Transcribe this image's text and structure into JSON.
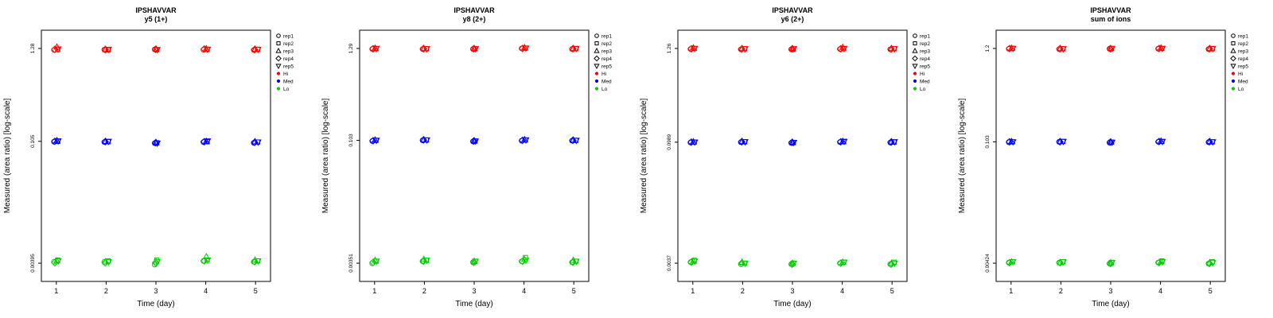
{
  "legend": {
    "rep_labels": [
      "rep1",
      "rep2",
      "rep3",
      "rep4",
      "rep5"
    ],
    "level_labels": [
      "Hi",
      "Med",
      "Lo"
    ]
  },
  "colors": {
    "axis": "#000000",
    "hi": "#ff0000",
    "med": "#0000ff",
    "lo": "#00cc00"
  },
  "chart_data": [
    {
      "type": "scatter",
      "title": "IPSHAVVAR",
      "subtitle": "y5 (1+)",
      "xlabel": "Time (day)",
      "ylabel": "Measured (area ratio) [log-scale]",
      "x_ticks": [
        "1",
        "2",
        "3",
        "4",
        "5"
      ],
      "log_scale": true,
      "groups": [
        {
          "name": "Hi",
          "color": "#ff0000",
          "tick_label": "1.28",
          "tick_value": 1.28,
          "values": [
            [
              1.23,
              1.24,
              1.33,
              1.25,
              1.26
            ],
            [
              1.24,
              1.23,
              1.25,
              1.24,
              1.25
            ],
            [
              1.25,
              1.24,
              1.26,
              1.25,
              1.24
            ],
            [
              1.24,
              1.25,
              1.27,
              1.26,
              1.25
            ],
            [
              1.23,
              1.25,
              1.26,
              1.24,
              1.25
            ]
          ]
        },
        {
          "name": "Med",
          "color": "#0000ff",
          "tick_label": "0.105",
          "tick_value": 0.105,
          "values": [
            [
              0.104,
              0.105,
              0.107,
              0.105,
              0.106
            ],
            [
              0.103,
              0.104,
              0.105,
              0.104,
              0.105
            ],
            [
              0.1,
              0.101,
              0.102,
              0.101,
              0.1
            ],
            [
              0.103,
              0.104,
              0.105,
              0.104,
              0.106
            ],
            [
              0.101,
              0.103,
              0.104,
              0.102,
              0.103
            ]
          ]
        },
        {
          "name": "Lo",
          "color": "#00cc00",
          "tick_label": "0.00395",
          "tick_value": 0.00395,
          "values": [
            [
              0.0041,
              0.0043,
              0.0042,
              0.004,
              0.0042
            ],
            [
              0.0041,
              0.0042,
              0.0041,
              0.004,
              0.0041
            ],
            [
              0.0038,
              0.0043,
              0.0041,
              0.004,
              0.0041
            ],
            [
              0.0042,
              0.0043,
              0.0047,
              0.0042,
              0.0043
            ],
            [
              0.0041,
              0.0042,
              0.0043,
              0.0041,
              0.0042
            ]
          ]
        }
      ]
    },
    {
      "type": "scatter",
      "title": "IPSHAVVAR",
      "subtitle": "y8 (2+)",
      "xlabel": "Time (day)",
      "ylabel": "Measured (area ratio) [log-scale]",
      "x_ticks": [
        "1",
        "2",
        "3",
        "4",
        "5"
      ],
      "log_scale": true,
      "groups": [
        {
          "name": "Hi",
          "color": "#ff0000",
          "tick_label": "1.29",
          "tick_value": 1.29,
          "values": [
            [
              1.27,
              1.28,
              1.3,
              1.28,
              1.29
            ],
            [
              1.27,
              1.28,
              1.29,
              1.28,
              1.28
            ],
            [
              1.27,
              1.28,
              1.29,
              1.28,
              1.28
            ],
            [
              1.29,
              1.3,
              1.32,
              1.29,
              1.3
            ],
            [
              1.27,
              1.28,
              1.29,
              1.28,
              1.29
            ]
          ]
        },
        {
          "name": "Med",
          "color": "#0000ff",
          "tick_label": "0.103",
          "tick_value": 0.103,
          "values": [
            [
              0.101,
              0.103,
              0.104,
              0.102,
              0.103
            ],
            [
              0.103,
              0.104,
              0.105,
              0.104,
              0.104
            ],
            [
              0.1,
              0.101,
              0.102,
              0.101,
              0.101
            ],
            [
              0.102,
              0.104,
              0.105,
              0.103,
              0.104
            ],
            [
              0.102,
              0.103,
              0.104,
              0.103,
              0.103
            ]
          ]
        },
        {
          "name": "Lo",
          "color": "#00cc00",
          "tick_label": "0.00351",
          "tick_value": 0.00351,
          "values": [
            [
              0.0035,
              0.0037,
              0.0038,
              0.0036,
              0.0037
            ],
            [
              0.0037,
              0.0038,
              0.0039,
              0.0037,
              0.0038
            ],
            [
              0.0036,
              0.0037,
              0.0037,
              0.0036,
              0.0037
            ],
            [
              0.0037,
              0.0041,
              0.0039,
              0.0037,
              0.0038
            ],
            [
              0.0036,
              0.0037,
              0.0038,
              0.0036,
              0.0037
            ]
          ]
        }
      ]
    },
    {
      "type": "scatter",
      "title": "IPSHAVVAR",
      "subtitle": "y6 (2+)",
      "xlabel": "Time (day)",
      "ylabel": "Measured (area ratio) [log-scale]",
      "x_ticks": [
        "1",
        "2",
        "3",
        "4",
        "5"
      ],
      "log_scale": true,
      "groups": [
        {
          "name": "Hi",
          "color": "#ff0000",
          "tick_label": "1.26",
          "tick_value": 1.26,
          "values": [
            [
              1.24,
              1.26,
              1.28,
              1.25,
              1.26
            ],
            [
              1.23,
              1.25,
              1.26,
              1.24,
              1.25
            ],
            [
              1.23,
              1.24,
              1.26,
              1.24,
              1.25
            ],
            [
              1.24,
              1.25,
              1.3,
              1.25,
              1.26
            ],
            [
              1.23,
              1.25,
              1.26,
              1.24,
              1.25
            ]
          ]
        },
        {
          "name": "Med",
          "color": "#0000ff",
          "tick_label": "0.0989",
          "tick_value": 0.0989,
          "values": [
            [
              0.098,
              0.099,
              0.1,
              0.099,
              0.099
            ],
            [
              0.099,
              0.1,
              0.101,
              0.1,
              0.1
            ],
            [
              0.097,
              0.098,
              0.099,
              0.098,
              0.098
            ],
            [
              0.099,
              0.1,
              0.101,
              0.1,
              0.101
            ],
            [
              0.098,
              0.099,
              0.1,
              0.099,
              0.1
            ]
          ]
        },
        {
          "name": "Lo",
          "color": "#00cc00",
          "tick_label": "0.0037",
          "tick_value": 0.0037,
          "values": [
            [
              0.0038,
              0.004,
              0.0039,
              0.0038,
              0.0039
            ],
            [
              0.0036,
              0.0037,
              0.0038,
              0.0037,
              0.0037
            ],
            [
              0.0036,
              0.0037,
              0.0037,
              0.0036,
              0.0037
            ],
            [
              0.0037,
              0.0038,
              0.0038,
              0.0037,
              0.0038
            ],
            [
              0.0036,
              0.0038,
              0.0037,
              0.0036,
              0.0037
            ]
          ]
        }
      ]
    },
    {
      "type": "scatter",
      "title": "IPSHAVVAR",
      "subtitle": "sum of ions",
      "xlabel": "Time (day)",
      "ylabel": "Measured (area ratio) [log-scale]",
      "x_ticks": [
        "1",
        "2",
        "3",
        "4",
        "5"
      ],
      "log_scale": true,
      "groups": [
        {
          "name": "Hi",
          "color": "#ff0000",
          "tick_label": "1.2",
          "tick_value": 1.2,
          "values": [
            [
              1.19,
              1.2,
              1.21,
              1.2,
              1.2
            ],
            [
              1.18,
              1.19,
              1.2,
              1.19,
              1.19
            ],
            [
              1.19,
              1.2,
              1.2,
              1.19,
              1.2
            ],
            [
              1.19,
              1.2,
              1.22,
              1.2,
              1.2
            ],
            [
              1.18,
              1.19,
              1.2,
              1.19,
              1.2
            ]
          ]
        },
        {
          "name": "Med",
          "color": "#0000ff",
          "tick_label": "0.103",
          "tick_value": 0.103,
          "values": [
            [
              0.102,
              0.103,
              0.104,
              0.103,
              0.103
            ],
            [
              0.103,
              0.104,
              0.104,
              0.103,
              0.104
            ],
            [
              0.101,
              0.102,
              0.103,
              0.102,
              0.102
            ],
            [
              0.103,
              0.104,
              0.105,
              0.104,
              0.104
            ],
            [
              0.102,
              0.103,
              0.104,
              0.103,
              0.103
            ]
          ]
        },
        {
          "name": "Lo",
          "color": "#00cc00",
          "tick_label": "0.00424",
          "tick_value": 0.00424,
          "values": [
            [
              0.0043,
              0.0044,
              0.0044,
              0.0043,
              0.0044
            ],
            [
              0.0043,
              0.0044,
              0.0043,
              0.0043,
              0.0044
            ],
            [
              0.0042,
              0.0043,
              0.0043,
              0.0042,
              0.0043
            ],
            [
              0.0043,
              0.0045,
              0.0044,
              0.0043,
              0.0044
            ],
            [
              0.0042,
              0.0044,
              0.0043,
              0.0042,
              0.0043
            ]
          ]
        }
      ]
    }
  ]
}
